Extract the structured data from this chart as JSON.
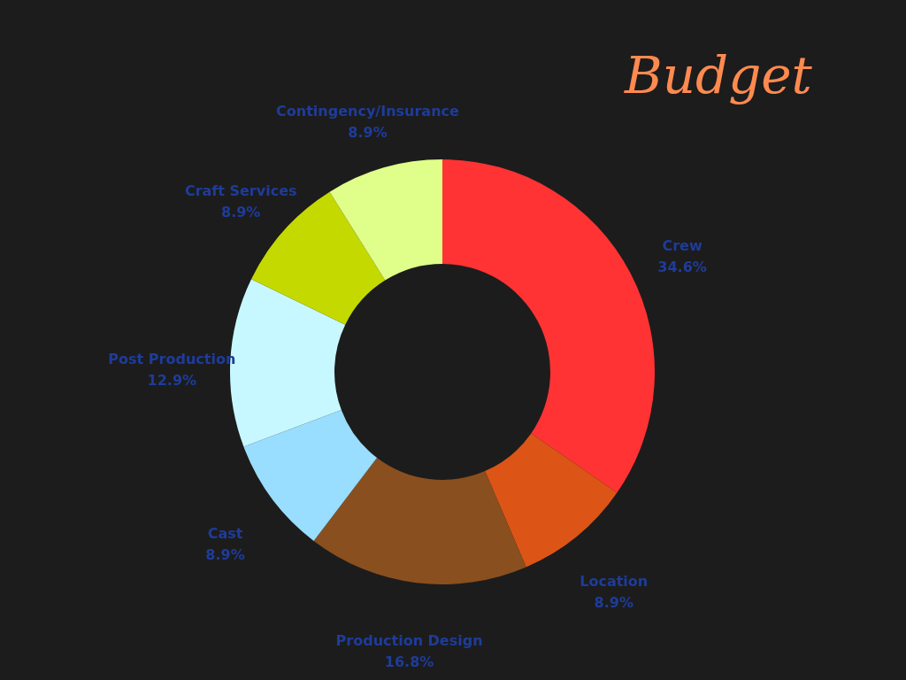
{
  "chart_data": {
    "type": "donut",
    "title": "Budget",
    "categories": [
      "Crew",
      "Location",
      "Production Design",
      "Cast",
      "Post Production",
      "Craft Services",
      "Contingency/Insurance"
    ],
    "values": [
      34.6,
      8.9,
      16.8,
      8.9,
      12.9,
      8.9,
      8.9
    ],
    "value_labels": [
      "34.6%",
      "8.9%",
      "16.8%",
      "8.9%",
      "12.9%",
      "8.9%",
      "8.9%"
    ],
    "colors": [
      "#ff3333",
      "#dc5516",
      "#8a4f1f",
      "#99ddff",
      "#c8f8ff",
      "#c4d900",
      "#e0ff8a"
    ]
  }
}
